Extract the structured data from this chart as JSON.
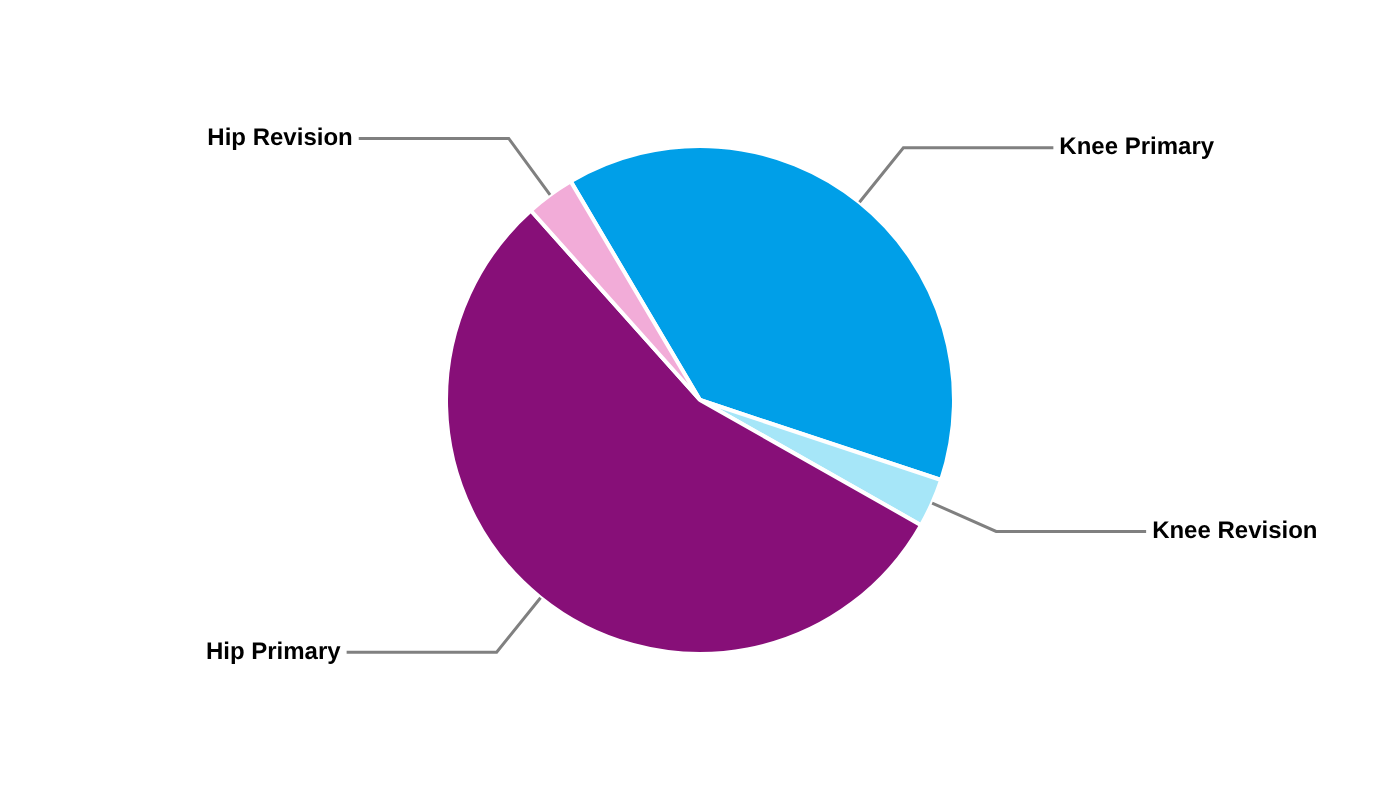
{
  "chart_data": {
    "type": "pie",
    "categories": [
      "Knee Primary",
      "Knee Revision",
      "Hip Primary",
      "Hip Revision"
    ],
    "values": [
      38.6,
      3.1,
      55.2,
      3.1
    ],
    "colors": [
      "#009fe8",
      "#a6e6f8",
      "#870f78",
      "#f2acd8"
    ],
    "legend": false
  }
}
